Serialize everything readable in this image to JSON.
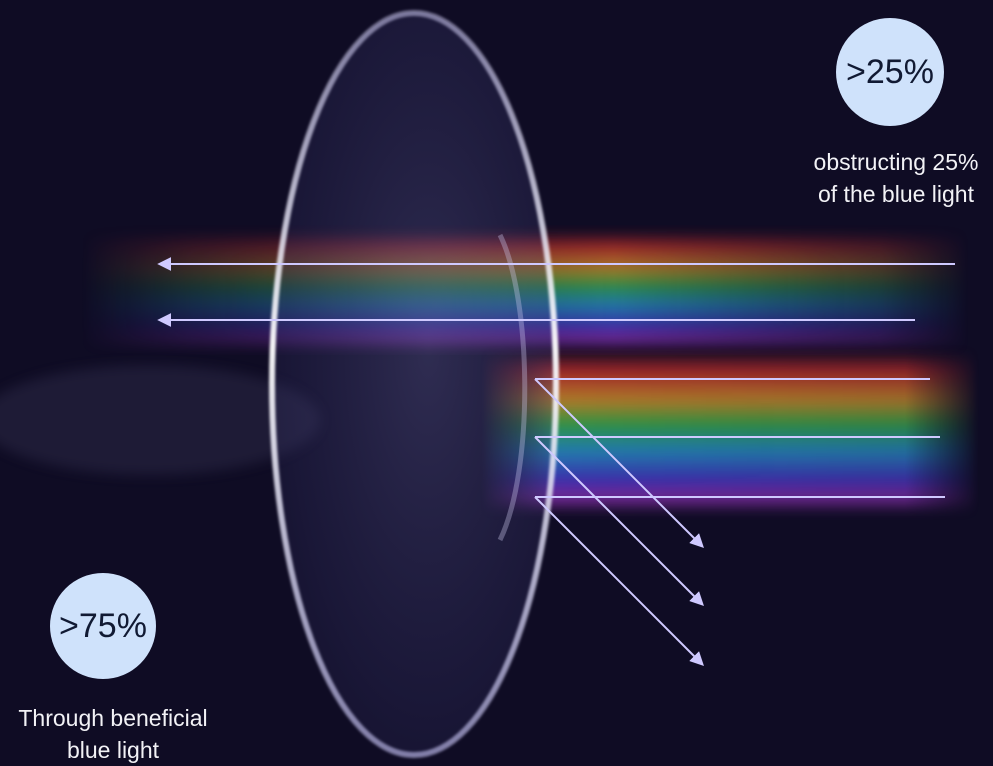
{
  "reflected": {
    "percent": ">25%",
    "caption_line1": "obstructing 25%",
    "caption_line2": "of the blue light"
  },
  "transmitted": {
    "percent": ">75%",
    "caption_line1": "Through beneficial",
    "caption_line2": "blue light"
  },
  "colors": {
    "background": "#0f0c24",
    "badge": "#cfe2fb",
    "badge_text": "#111a33",
    "arrow": "#cfc9ff",
    "caption_text": "#f2f2f6"
  }
}
